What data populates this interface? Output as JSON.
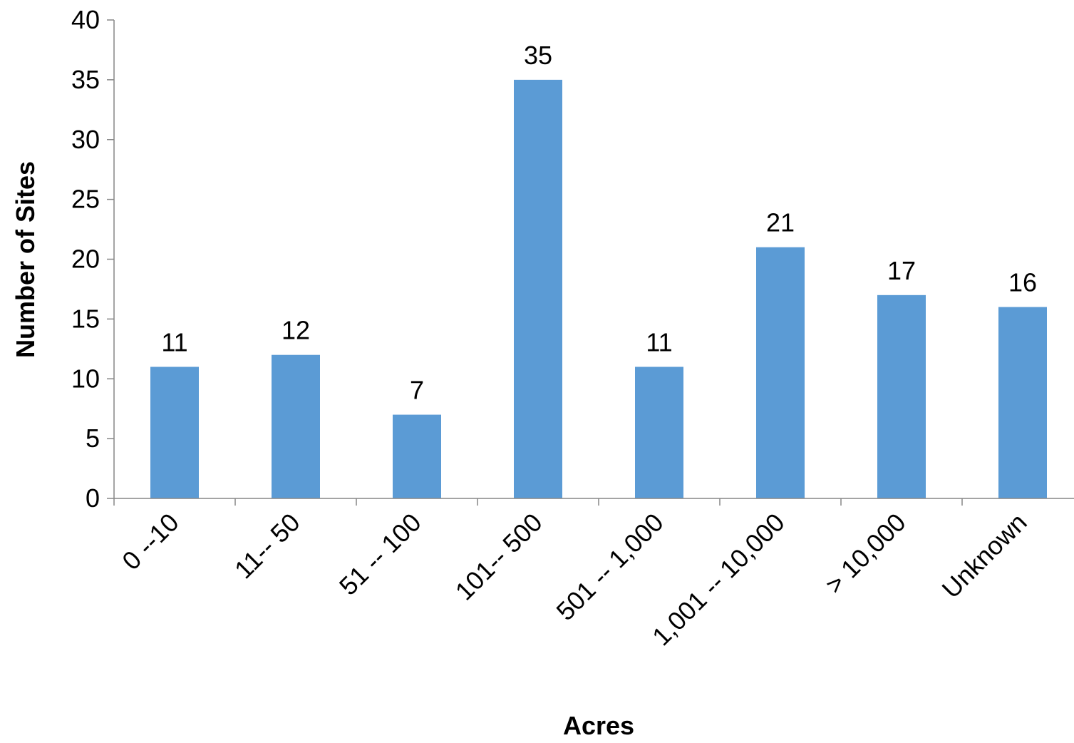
{
  "chart_data": {
    "type": "bar",
    "title": "",
    "xlabel": "Acres",
    "ylabel": "Number of Sites",
    "categories": [
      "0 --10",
      "11-- 50",
      "51 -- 100",
      "101-- 500",
      "501 -- 1,000",
      "1,001 -- 10,000",
      "> 10,000",
      "Unknown"
    ],
    "values": [
      11,
      12,
      7,
      35,
      11,
      21,
      17,
      16
    ],
    "ylim": [
      0,
      40
    ],
    "yticks": [
      0,
      5,
      10,
      15,
      20,
      25,
      30,
      35,
      40
    ],
    "grid": false,
    "legend": "none",
    "data_labels": true,
    "bar_color": "#5b9bd5"
  }
}
